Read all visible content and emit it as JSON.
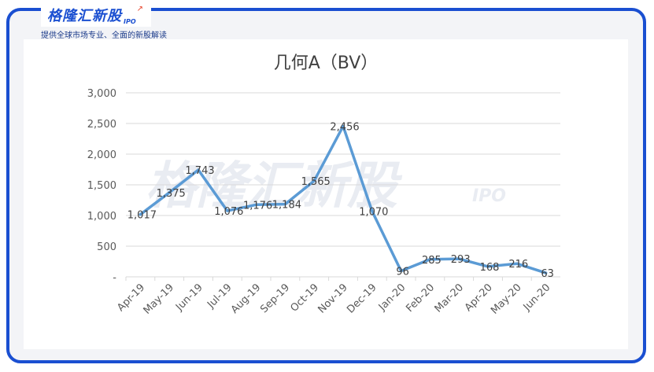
{
  "brand": {
    "name": "格隆汇新股",
    "ipo": "IPO",
    "tagline": "提供全球市场专业、全面的新股解读"
  },
  "watermark": {
    "text": "格隆汇新股",
    "ipo": "IPO"
  },
  "colors": {
    "frame": "#1a4fd1",
    "line": "#5b9bd5",
    "grid": "#d9d9d9",
    "accent": "#e8452c"
  },
  "chart_data": {
    "type": "line",
    "title": "几何A（BV）",
    "categories": [
      "Apr-19",
      "May-19",
      "Jun-19",
      "Jul-19",
      "Aug-19",
      "Sep-19",
      "Oct-19",
      "Nov-19",
      "Dec-19",
      "Jan-20",
      "Feb-20",
      "Mar-20",
      "Apr-20",
      "May-20",
      "Jun-20"
    ],
    "values": [
      1017,
      1375,
      1743,
      1076,
      1176,
      1184,
      1565,
      2456,
      1070,
      96,
      285,
      293,
      168,
      216,
      63
    ],
    "labels": [
      "1,017",
      "1,375",
      "1,743",
      "1,076",
      "1,176",
      "1,184",
      "1,565",
      "2,456",
      "1,070",
      "96",
      "285",
      "293",
      "168",
      "216",
      "63"
    ],
    "yticks": [
      "-",
      "500",
      "1,000",
      "1,500",
      "2,000",
      "2,500",
      "3,000"
    ],
    "ytick_values": [
      0,
      500,
      1000,
      1500,
      2000,
      2500,
      3000
    ],
    "ylim": [
      0,
      3000
    ],
    "grid": true,
    "legend": "none"
  }
}
